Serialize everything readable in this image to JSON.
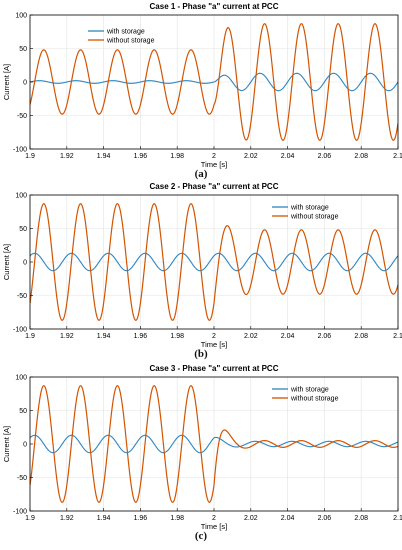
{
  "colors": {
    "with_storage": "#2e86c1",
    "without_storage": "#d35400",
    "frame": "#000000",
    "grid": "#e3e3e3"
  },
  "chart_data": [
    {
      "type": "line",
      "title": "Case 1 - Phase \"a\" current at PCC",
      "caption": "(a)",
      "xlabel": "Time [s]",
      "ylabel": "Current [A]",
      "xlim": [
        1.9,
        2.1
      ],
      "ylim": [
        -100,
        100
      ],
      "x_ticks": [
        1.9,
        1.92,
        1.94,
        1.96,
        1.98,
        2,
        2.02,
        2.04,
        2.06,
        2.08,
        2.1
      ],
      "x_tick_labels": [
        "1.9",
        "1.92",
        "1.94",
        "1.96",
        "1.98",
        "2",
        "2.02",
        "2.04",
        "2.06",
        "2.08",
        "2.1"
      ],
      "y_ticks": [
        -100,
        -50,
        0,
        50,
        100
      ],
      "y_tick_labels": [
        "-100",
        "-50",
        "0",
        "50",
        "100"
      ],
      "grid": true,
      "legend_position": "top-left",
      "frequency_hz": 50,
      "switch_time": 2.0,
      "series": [
        {
          "name": "with storage",
          "color_key": "with_storage",
          "amplitude_before": 2,
          "amplitude_after": 13,
          "phase_deg": 0
        },
        {
          "name": "without storage",
          "color_key": "without_storage",
          "amplitude_before": 48,
          "amplitude_after": 87,
          "phase_deg": -45
        }
      ]
    },
    {
      "type": "line",
      "title": "Case 2 - Phase \"a\" current at PCC",
      "caption": "(b)",
      "xlabel": "Time [s]",
      "ylabel": "Current [A]",
      "xlim": [
        1.9,
        2.1
      ],
      "ylim": [
        -100,
        100
      ],
      "x_ticks": [
        1.9,
        1.92,
        1.94,
        1.96,
        1.98,
        2,
        2.02,
        2.04,
        2.06,
        2.08,
        2.1
      ],
      "x_tick_labels": [
        "1.9",
        "1.92",
        "1.94",
        "1.96",
        "1.98",
        "2",
        "2.02",
        "2.04",
        "2.06",
        "2.08",
        "2.1"
      ],
      "y_ticks": [
        -100,
        -50,
        0,
        50,
        100
      ],
      "y_tick_labels": [
        "-100",
        "-50",
        "0",
        "50",
        "100"
      ],
      "grid": true,
      "legend_position": "top-right",
      "frequency_hz": 50,
      "switch_time": 2.0,
      "series": [
        {
          "name": "with storage",
          "color_key": "with_storage",
          "amplitude_before": 13,
          "amplitude_after": 13,
          "phase_deg": 45
        },
        {
          "name": "without storage",
          "color_key": "without_storage",
          "amplitude_before": 87,
          "amplitude_after": 48,
          "phase_deg": -45
        }
      ]
    },
    {
      "type": "line",
      "title": "Case 3 - Phase \"a\" current at PCC",
      "caption": "(c)",
      "xlabel": "Time [s]",
      "ylabel": "Current [A]",
      "xlim": [
        1.9,
        2.1
      ],
      "ylim": [
        -100,
        100
      ],
      "x_ticks": [
        1.9,
        1.92,
        1.94,
        1.96,
        1.98,
        2,
        2.02,
        2.04,
        2.06,
        2.08,
        2.1
      ],
      "x_tick_labels": [
        "1.9",
        "1.92",
        "1.94",
        "1.96",
        "1.98",
        "2",
        "2.02",
        "2.04",
        "2.06",
        "2.08",
        "2.1"
      ],
      "y_ticks": [
        -100,
        -50,
        0,
        50,
        100
      ],
      "y_tick_labels": [
        "-100",
        "-50",
        "0",
        "50",
        "100"
      ],
      "grid": true,
      "legend_position": "top-right",
      "frequency_hz": 50,
      "switch_time": 2.0,
      "series": [
        {
          "name": "with storage",
          "color_key": "with_storage",
          "amplitude_before": 13,
          "amplitude_after": 4,
          "phase_deg": 45
        },
        {
          "name": "without storage",
          "color_key": "without_storage",
          "amplitude_before": 87,
          "amplitude_after": 5,
          "phase_deg": -45
        }
      ]
    }
  ]
}
